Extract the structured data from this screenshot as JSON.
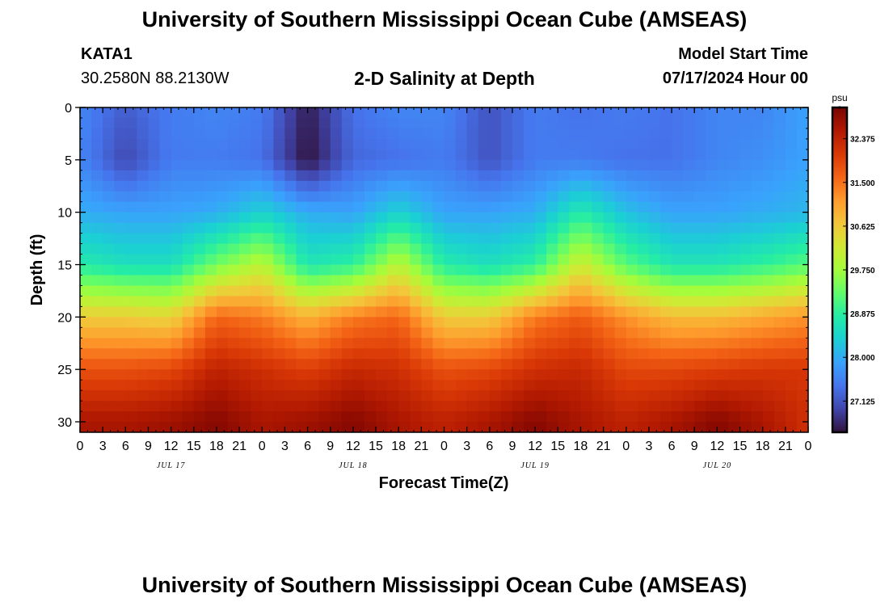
{
  "page": {
    "title_top": "University of Southern Mississippi Ocean Cube (AMSEAS)",
    "title_bottom": "University of Southern Mississippi Ocean Cube (AMSEAS)",
    "station": "KATA1",
    "coords": "30.2580N  88.2130W",
    "subtitle": "2-D Salinity at Depth",
    "model_start_label": "Model Start Time",
    "model_start_value": "07/17/2024 Hour 00"
  },
  "chart_data": {
    "type": "heatmap",
    "title": "2-D Salinity at Depth",
    "xlabel": "Forecast Time(Z)",
    "ylabel": "Depth (ft)",
    "x_range_hours": [
      0,
      96
    ],
    "x_tick_hours": [
      0,
      3,
      6,
      9,
      12,
      15,
      18,
      21,
      24,
      27,
      30,
      33,
      36,
      39,
      42,
      45,
      48,
      51,
      54,
      57,
      60,
      63,
      66,
      69,
      72,
      75,
      78,
      81,
      84,
      87,
      90,
      93,
      96
    ],
    "x_tick_labels": [
      "0",
      "3",
      "6",
      "9",
      "12",
      "15",
      "18",
      "21",
      "0",
      "3",
      "6",
      "9",
      "12",
      "15",
      "18",
      "21",
      "0",
      "3",
      "6",
      "9",
      "12",
      "15",
      "18",
      "21",
      "0",
      "3",
      "6",
      "9",
      "12",
      "15",
      "18",
      "21",
      "0"
    ],
    "day_labels": [
      {
        "label": "JUL 17",
        "hour": 12
      },
      {
        "label": "JUL 18",
        "hour": 36
      },
      {
        "label": "JUL 19",
        "hour": 60
      },
      {
        "label": "JUL 20",
        "hour": 84
      }
    ],
    "y_range_ft": [
      0,
      31
    ],
    "y_ticks": [
      0,
      5,
      10,
      15,
      20,
      25,
      30
    ],
    "y_tick_labels": [
      "0",
      "5",
      "10",
      "15",
      "20",
      "25",
      "30"
    ],
    "colorbar": {
      "unit": "psu",
      "min": 26.5,
      "max": 33.0,
      "ticks": [
        27.125,
        28.0,
        28.875,
        29.75,
        30.625,
        31.5,
        32.375
      ],
      "tick_labels": [
        "27.125",
        "28.000",
        "28.875",
        "29.750",
        "30.625",
        "31.500",
        "32.375"
      ],
      "colors": [
        "#30123b",
        "#4145ab",
        "#4675ed",
        "#39a2fc",
        "#1bcfd4",
        "#24eca6",
        "#61fc6c",
        "#a4fc3b",
        "#d1e834",
        "#f3c63a",
        "#fe9b2d",
        "#f36315",
        "#d93806",
        "#b11901",
        "#7a0402"
      ]
    },
    "salinity_field": {
      "time_hours": [
        0,
        6,
        12,
        18,
        24,
        30,
        36,
        42,
        48,
        54,
        60,
        66,
        72,
        78,
        84,
        90,
        96
      ],
      "depth_ft": [
        0,
        5,
        10,
        15,
        20,
        25,
        30
      ],
      "values_psu": [
        [
          27.6,
          27.2,
          27.5,
          27.6,
          27.5,
          26.6,
          27.4,
          27.6,
          27.6,
          27.1,
          27.5,
          27.4,
          27.5,
          27.4,
          27.6,
          27.6,
          27.9
        ],
        [
          27.6,
          27.0,
          27.5,
          27.5,
          27.4,
          26.5,
          27.3,
          27.4,
          27.5,
          27.1,
          27.5,
          27.5,
          27.4,
          27.4,
          27.6,
          27.7,
          27.9
        ],
        [
          28.0,
          27.9,
          27.9,
          28.0,
          28.4,
          28.0,
          27.9,
          28.4,
          27.9,
          27.9,
          28.0,
          28.8,
          28.2,
          27.9,
          27.9,
          28.0,
          28.1
        ],
        [
          28.8,
          28.6,
          28.6,
          29.4,
          30.0,
          28.7,
          28.9,
          30.0,
          28.8,
          28.6,
          28.9,
          30.2,
          29.2,
          28.7,
          28.7,
          28.9,
          29.2
        ],
        [
          30.6,
          30.6,
          30.5,
          31.6,
          31.4,
          30.9,
          31.4,
          31.6,
          30.6,
          30.6,
          31.4,
          31.7,
          31.2,
          30.8,
          30.8,
          31.0,
          31.2
        ],
        [
          31.8,
          31.8,
          31.9,
          32.4,
          32.2,
          32.0,
          32.3,
          32.2,
          31.8,
          31.9,
          32.2,
          32.3,
          31.9,
          31.9,
          32.0,
          32.1,
          32.1
        ],
        [
          32.6,
          32.6,
          32.7,
          32.9,
          32.6,
          32.7,
          32.9,
          32.6,
          32.4,
          32.6,
          32.9,
          32.6,
          32.4,
          32.6,
          32.9,
          32.6,
          32.2
        ]
      ]
    }
  }
}
